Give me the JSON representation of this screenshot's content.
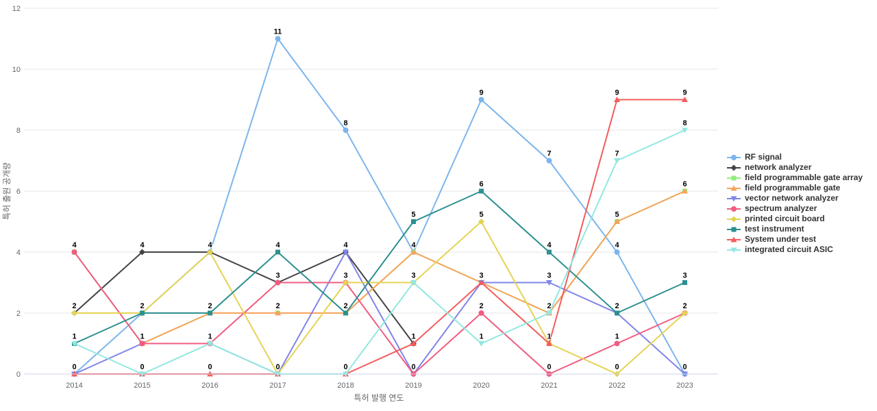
{
  "chart_data": {
    "type": "line",
    "title": "",
    "xlabel": "특허 발행 연도",
    "ylabel": "특허 출원 공개량",
    "categories": [
      "2014",
      "2015",
      "2016",
      "2017",
      "2018",
      "2019",
      "2020",
      "2021",
      "2022",
      "2023"
    ],
    "ylim": [
      0,
      12
    ],
    "yticks": [
      0,
      2,
      4,
      6,
      8,
      10,
      12
    ],
    "grid": true,
    "legend_position": "right",
    "gridline_color": "#e6e6e6",
    "axis_line_color": "#ccd6eb",
    "axis_text_color": "#666666",
    "data_label_color": "#000000",
    "series": [
      {
        "name": "RF signal",
        "color": "#7cb5ec",
        "marker": "circle",
        "values": [
          0,
          2,
          4,
          11,
          8,
          4,
          9,
          7,
          4,
          0
        ]
      },
      {
        "name": "network analyzer",
        "color": "#434348",
        "marker": "diamond",
        "values": [
          2,
          4,
          4,
          3,
          4,
          1,
          null,
          null,
          null,
          null
        ]
      },
      {
        "name": "field programmable gate array",
        "color": "#90ed7d",
        "marker": "square",
        "values": [
          4,
          1,
          2,
          2,
          2,
          4,
          3,
          2,
          5,
          6
        ]
      },
      {
        "name": "field programmable gate",
        "color": "#f7a35c",
        "marker": "triangle",
        "values": [
          null,
          1,
          2,
          2,
          2,
          4,
          3,
          2,
          5,
          6
        ]
      },
      {
        "name": "vector network analyzer",
        "color": "#8085e9",
        "marker": "triangle-down",
        "values": [
          0,
          1,
          1,
          0,
          4,
          0,
          3,
          3,
          2,
          0
        ]
      },
      {
        "name": "spectrum analyzer",
        "color": "#f15c80",
        "marker": "circle",
        "values": [
          4,
          1,
          1,
          3,
          3,
          0,
          2,
          0,
          1,
          2
        ]
      },
      {
        "name": "printed circuit board",
        "color": "#e4d354",
        "marker": "diamond",
        "values": [
          2,
          2,
          4,
          0,
          3,
          3,
          5,
          1,
          0,
          2
        ]
      },
      {
        "name": "test instrument",
        "color": "#2b908f",
        "marker": "square",
        "values": [
          1,
          2,
          2,
          4,
          2,
          5,
          6,
          4,
          2,
          3
        ]
      },
      {
        "name": "System under test",
        "color": "#f45b5b",
        "marker": "triangle",
        "values": [
          0,
          0,
          0,
          0,
          0,
          1,
          3,
          1,
          9,
          9
        ]
      },
      {
        "name": "integrated circuit ASIC",
        "color": "#91e8e1",
        "marker": "triangle-down",
        "values": [
          1,
          0,
          1,
          0,
          0,
          3,
          1,
          2,
          7,
          8
        ]
      }
    ]
  }
}
